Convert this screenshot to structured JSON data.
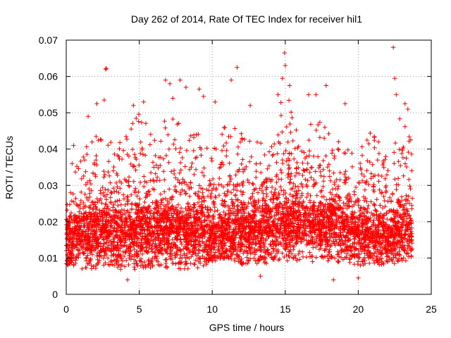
{
  "chart_data": {
    "type": "scatter",
    "title": "Day 262 of 2014, Rate Of TEC Index for receiver hil1",
    "xlabel": "GPS time / hours",
    "ylabel": "ROTI / TECUs",
    "xlim": [
      0,
      25
    ],
    "ylim": [
      0,
      0.07
    ],
    "xticks": [
      0,
      5,
      10,
      15,
      20,
      25
    ],
    "yticks": [
      0,
      0.01,
      0.02,
      0.03,
      0.04,
      0.05,
      0.06,
      0.07
    ],
    "xtick_labels": [
      "0",
      "5",
      "10",
      "15",
      "20",
      "25"
    ],
    "ytick_labels": [
      "0",
      "0.01",
      "0.02",
      "0.03",
      "0.04",
      "0.05",
      "0.06",
      "0.07"
    ],
    "grid": true,
    "marker": "+",
    "color": "#ff0000",
    "x_data_end": 23.7,
    "envelope": {
      "x": [
        0.0,
        0.5,
        1.0,
        2.0,
        3.0,
        4.0,
        5.0,
        6.0,
        7.0,
        8.0,
        9.0,
        10.0,
        11.0,
        12.0,
        13.0,
        14.0,
        15.0,
        16.0,
        17.0,
        18.0,
        19.0,
        20.0,
        21.0,
        22.0,
        23.0,
        23.7
      ],
      "baseline": [
        0.013,
        0.015,
        0.016,
        0.017,
        0.016,
        0.015,
        0.016,
        0.016,
        0.017,
        0.016,
        0.017,
        0.015,
        0.016,
        0.016,
        0.017,
        0.017,
        0.018,
        0.019,
        0.019,
        0.018,
        0.018,
        0.016,
        0.016,
        0.015,
        0.016,
        0.016
      ],
      "low": [
        0.008,
        0.008,
        0.007,
        0.007,
        0.007,
        0.006,
        0.007,
        0.007,
        0.007,
        0.007,
        0.007,
        0.009,
        0.01,
        0.008,
        0.008,
        0.008,
        0.009,
        0.009,
        0.009,
        0.008,
        0.009,
        0.008,
        0.008,
        0.008,
        0.009,
        0.009
      ],
      "high": [
        0.03,
        0.035,
        0.038,
        0.045,
        0.042,
        0.045,
        0.05,
        0.045,
        0.05,
        0.047,
        0.045,
        0.04,
        0.05,
        0.045,
        0.042,
        0.042,
        0.058,
        0.045,
        0.048,
        0.048,
        0.04,
        0.042,
        0.045,
        0.04,
        0.05,
        0.042
      ]
    },
    "notable_points": [
      {
        "x": 0.3,
        "y": 0.028
      },
      {
        "x": 0.4,
        "y": 0.036
      },
      {
        "x": 0.5,
        "y": 0.041
      },
      {
        "x": 1.5,
        "y": 0.049
      },
      {
        "x": 2.1,
        "y": 0.0525
      },
      {
        "x": 2.6,
        "y": 0.0535
      },
      {
        "x": 2.7,
        "y": 0.062
      },
      {
        "x": 2.75,
        "y": 0.0622
      },
      {
        "x": 4.2,
        "y": 0.004
      },
      {
        "x": 4.6,
        "y": 0.052
      },
      {
        "x": 5.3,
        "y": 0.053
      },
      {
        "x": 6.8,
        "y": 0.059
      },
      {
        "x": 7.1,
        "y": 0.058
      },
      {
        "x": 7.3,
        "y": 0.054
      },
      {
        "x": 7.8,
        "y": 0.059
      },
      {
        "x": 8.2,
        "y": 0.057
      },
      {
        "x": 9.1,
        "y": 0.0565
      },
      {
        "x": 9.4,
        "y": 0.0545
      },
      {
        "x": 10.2,
        "y": 0.053
      },
      {
        "x": 11.3,
        "y": 0.059
      },
      {
        "x": 11.7,
        "y": 0.0625
      },
      {
        "x": 12.6,
        "y": 0.052
      },
      {
        "x": 13.3,
        "y": 0.005
      },
      {
        "x": 14.5,
        "y": 0.055
      },
      {
        "x": 14.8,
        "y": 0.0595
      },
      {
        "x": 14.95,
        "y": 0.0665
      },
      {
        "x": 15.0,
        "y": 0.063
      },
      {
        "x": 15.3,
        "y": 0.0575
      },
      {
        "x": 16.6,
        "y": 0.055
      },
      {
        "x": 17.1,
        "y": 0.055
      },
      {
        "x": 17.8,
        "y": 0.0575
      },
      {
        "x": 18.3,
        "y": 0.004
      },
      {
        "x": 19.1,
        "y": 0.0525
      },
      {
        "x": 20.0,
        "y": 0.0045
      },
      {
        "x": 22.4,
        "y": 0.068
      },
      {
        "x": 22.5,
        "y": 0.0595
      },
      {
        "x": 22.6,
        "y": 0.055
      },
      {
        "x": 23.2,
        "y": 0.0525
      },
      {
        "x": 23.4,
        "y": 0.051
      }
    ]
  }
}
